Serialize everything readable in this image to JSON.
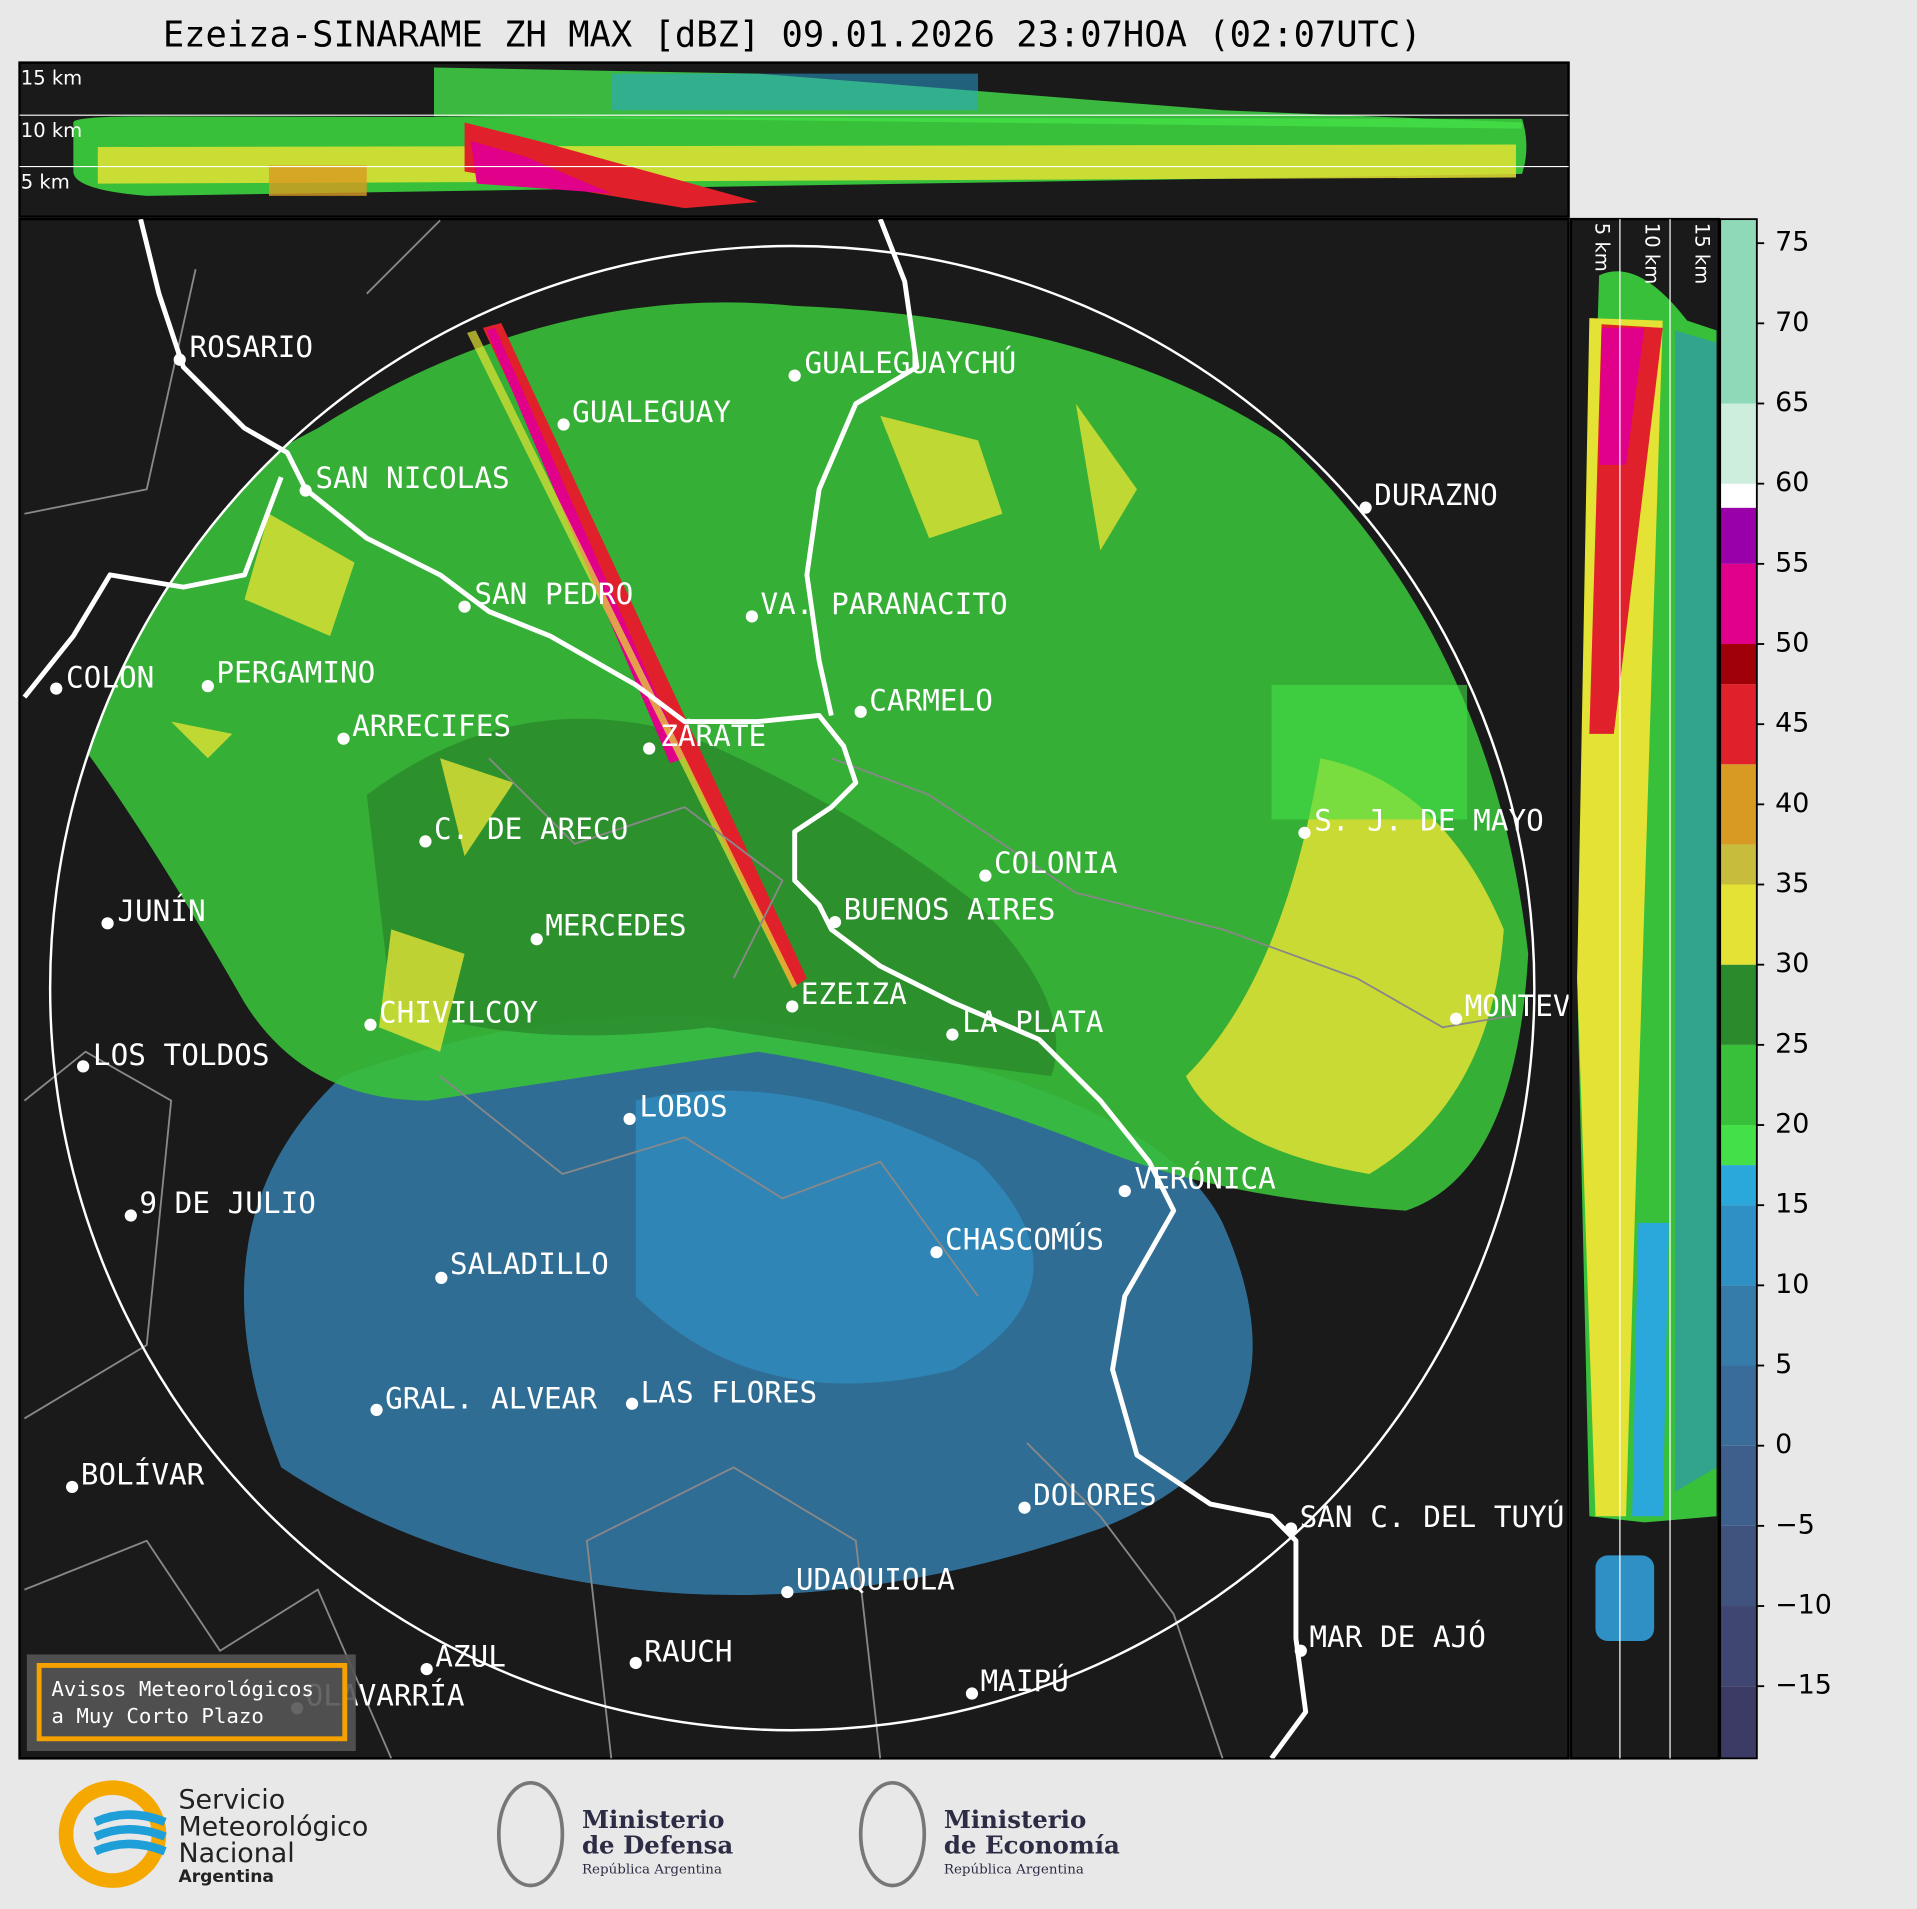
{
  "header": {
    "title": "Ezeiza-SINARAME ZH MAX [dBZ] 09.01.2026 23:07HOA (02:07UTC)"
  },
  "top_panel": {
    "labels": [
      "15 km",
      "10 km",
      "5 km"
    ]
  },
  "side_panel": {
    "labels": [
      "5 km",
      "10 km",
      "15 km"
    ]
  },
  "colorbar": {
    "range": [
      -19.5,
      76.5
    ],
    "ticks": [
      75,
      70,
      65,
      60,
      55,
      50,
      45,
      40,
      35,
      30,
      25,
      20,
      15,
      10,
      5,
      0,
      {
        "value": -5,
        "label": "−5"
      },
      {
        "value": -10,
        "label": "−10"
      },
      {
        "value": -15,
        "label": "−15"
      }
    ],
    "bands": [
      {
        "from": -19.5,
        "to": -15,
        "color": "#3b3b66"
      },
      {
        "from": -15,
        "to": -10,
        "color": "#3f4672"
      },
      {
        "from": -10,
        "to": -5,
        "color": "#40527e"
      },
      {
        "from": -5,
        "to": 0,
        "color": "#3e5f8c"
      },
      {
        "from": 0,
        "to": 5,
        "color": "#3a6c9a"
      },
      {
        "from": 5,
        "to": 10,
        "color": "#357caa"
      },
      {
        "from": 10,
        "to": 15,
        "color": "#2e90c4"
      },
      {
        "from": 15,
        "to": 17.5,
        "color": "#2aa8dc"
      },
      {
        "from": 17.5,
        "to": 20,
        "color": "#44e048"
      },
      {
        "from": 20,
        "to": 25,
        "color": "#38c03a"
      },
      {
        "from": 25,
        "to": 30,
        "color": "#2a8a2c"
      },
      {
        "from": 30,
        "to": 35,
        "color": "#e4e234"
      },
      {
        "from": 35,
        "to": 37.5,
        "color": "#c8bc3c"
      },
      {
        "from": 37.5,
        "to": 42.5,
        "color": "#d89a22"
      },
      {
        "from": 42.5,
        "to": 47.5,
        "color": "#e0202a"
      },
      {
        "from": 47.5,
        "to": 50,
        "color": "#a00008"
      },
      {
        "from": 50,
        "to": 55,
        "color": "#e0008a"
      },
      {
        "from": 55,
        "to": 58.5,
        "color": "#9a00a8"
      },
      {
        "from": 58.5,
        "to": 60,
        "color": "#ffffff"
      },
      {
        "from": 60,
        "to": 65,
        "color": "#cdeedd"
      },
      {
        "from": 65,
        "to": 76.5,
        "color": "#8fd8b8"
      }
    ]
  },
  "map": {
    "cities": [
      "ROSARIO",
      "GUALEGUAYCHÚ",
      "GUALEGUAY",
      "SAN NICOLAS",
      "DURAZNO",
      "SAN PEDRO",
      "VA. PARANACITO",
      "COLON",
      "PERGAMINO",
      "CARMELO",
      "ARRECIFES",
      "ZÁRATE",
      "S. J. DE MAYO",
      "C. DE ARECO",
      "COLONIA",
      "BUENOS AIRES",
      "JUNÍN",
      "MERCEDES",
      "MONTEVIDEO",
      "EZEIZA",
      "LA PLATA",
      "CHIVILCOY",
      "LOS TOLDOS",
      "LOBOS",
      "VERÓNICA",
      "9 DE JULIO",
      "CHASCOMÚS",
      "SALADILLO",
      "GRAL. ALVEAR",
      "LAS FLORES",
      "BOLÍVAR",
      "DOLORES",
      "SAN C. DEL TUYÚ",
      "UDAQUIOLA",
      "MAR DE AJÓ",
      "RAUCH",
      "AZUL",
      "MAIPÚ",
      "OLAVARRÍA"
    ],
    "warning": [
      "Avisos Meteorológicos",
      "a Muy Corto Plazo"
    ]
  },
  "footer": {
    "smn": [
      "Servicio",
      "Meteorológico",
      "Nacional",
      "Argentina"
    ],
    "defensa": [
      "Ministerio",
      "de Defensa",
      "República Argentina"
    ],
    "economia": [
      "Ministerio",
      "de Economía",
      "República Argentina"
    ]
  }
}
